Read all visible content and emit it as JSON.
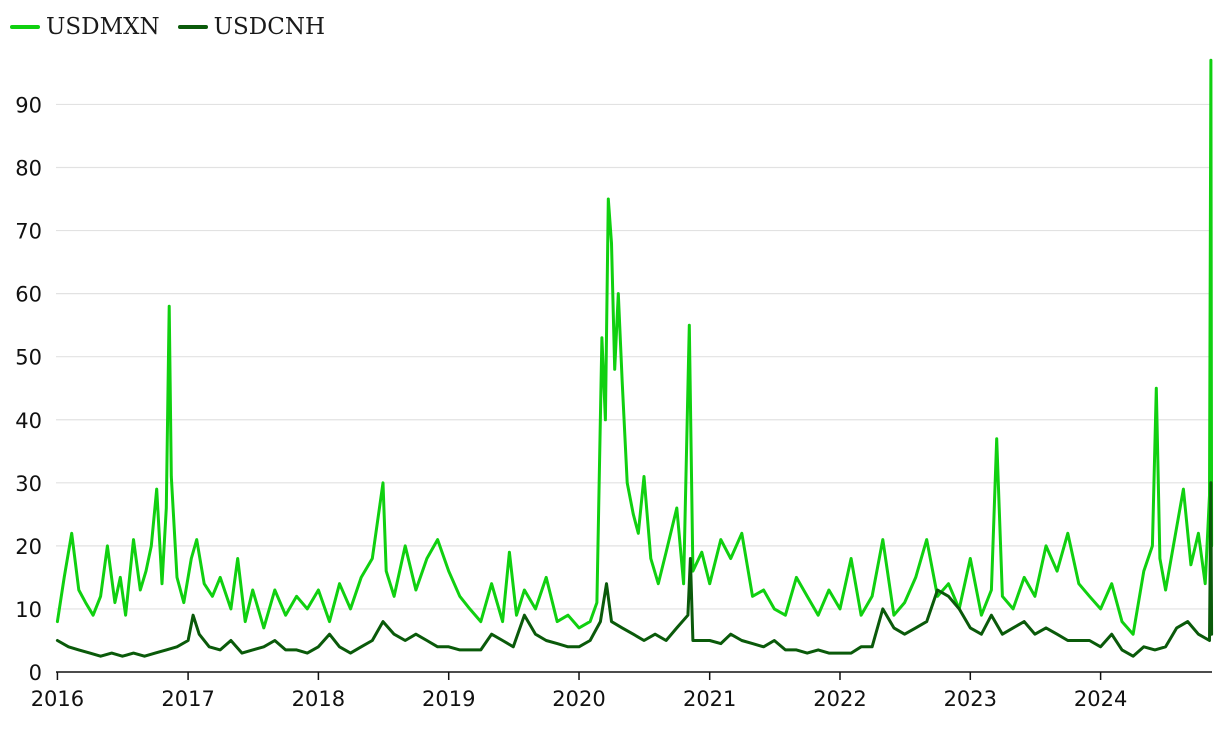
{
  "chart_data": {
    "type": "line",
    "title": "",
    "xlabel": "",
    "ylabel": "",
    "x_range": [
      "2015-12-28",
      "2024-11-08"
    ],
    "ylim": [
      0,
      98
    ],
    "y_ticks": [
      0,
      10,
      20,
      30,
      40,
      50,
      60,
      70,
      80,
      90
    ],
    "x_ticks": [
      "2016",
      "2017",
      "2018",
      "2019",
      "2020",
      "2021",
      "2022",
      "2023",
      "2024"
    ],
    "grid": "horizontal",
    "legend_position": "top-left",
    "series": [
      {
        "name": "USDMXN",
        "color": "#10d010",
        "points": [
          [
            "2016-01-01",
            8
          ],
          [
            "2016-01-20",
            15
          ],
          [
            "2016-02-10",
            22
          ],
          [
            "2016-03-01",
            13
          ],
          [
            "2016-03-20",
            11
          ],
          [
            "2016-04-10",
            9
          ],
          [
            "2016-05-01",
            12
          ],
          [
            "2016-05-20",
            20
          ],
          [
            "2016-06-10",
            11
          ],
          [
            "2016-06-25",
            15
          ],
          [
            "2016-07-10",
            9
          ],
          [
            "2016-08-01",
            21
          ],
          [
            "2016-08-20",
            13
          ],
          [
            "2016-09-05",
            16
          ],
          [
            "2016-09-20",
            20
          ],
          [
            "2016-10-05",
            29
          ],
          [
            "2016-10-20",
            14
          ],
          [
            "2016-11-01",
            26
          ],
          [
            "2016-11-09",
            58
          ],
          [
            "2016-11-15",
            31
          ],
          [
            "2016-12-01",
            15
          ],
          [
            "2016-12-20",
            11
          ],
          [
            "2017-01-10",
            18
          ],
          [
            "2017-01-25",
            21
          ],
          [
            "2017-02-15",
            14
          ],
          [
            "2017-03-10",
            12
          ],
          [
            "2017-04-01",
            15
          ],
          [
            "2017-05-01",
            10
          ],
          [
            "2017-05-20",
            18
          ],
          [
            "2017-06-10",
            8
          ],
          [
            "2017-07-01",
            13
          ],
          [
            "2017-08-01",
            7
          ],
          [
            "2017-09-01",
            13
          ],
          [
            "2017-10-01",
            9
          ],
          [
            "2017-11-01",
            12
          ],
          [
            "2017-12-01",
            10
          ],
          [
            "2018-01-01",
            13
          ],
          [
            "2018-02-01",
            8
          ],
          [
            "2018-03-01",
            14
          ],
          [
            "2018-04-01",
            10
          ],
          [
            "2018-05-01",
            15
          ],
          [
            "2018-06-01",
            18
          ],
          [
            "2018-07-01",
            30
          ],
          [
            "2018-07-10",
            16
          ],
          [
            "2018-08-01",
            12
          ],
          [
            "2018-09-01",
            20
          ],
          [
            "2018-10-01",
            13
          ],
          [
            "2018-11-01",
            18
          ],
          [
            "2018-12-01",
            21
          ],
          [
            "2019-01-01",
            16
          ],
          [
            "2019-02-01",
            12
          ],
          [
            "2019-03-01",
            10
          ],
          [
            "2019-04-01",
            8
          ],
          [
            "2019-05-01",
            14
          ],
          [
            "2019-06-01",
            8
          ],
          [
            "2019-06-20",
            19
          ],
          [
            "2019-07-10",
            9
          ],
          [
            "2019-08-01",
            13
          ],
          [
            "2019-09-01",
            10
          ],
          [
            "2019-10-01",
            15
          ],
          [
            "2019-11-01",
            8
          ],
          [
            "2019-12-01",
            9
          ],
          [
            "2020-01-01",
            7
          ],
          [
            "2020-02-01",
            8
          ],
          [
            "2020-02-20",
            11
          ],
          [
            "2020-03-05",
            53
          ],
          [
            "2020-03-15",
            40
          ],
          [
            "2020-03-23",
            75
          ],
          [
            "2020-04-01",
            68
          ],
          [
            "2020-04-10",
            48
          ],
          [
            "2020-04-20",
            60
          ],
          [
            "2020-05-01",
            46
          ],
          [
            "2020-05-15",
            30
          ],
          [
            "2020-06-01",
            25
          ],
          [
            "2020-06-15",
            22
          ],
          [
            "2020-07-01",
            31
          ],
          [
            "2020-07-20",
            18
          ],
          [
            "2020-08-10",
            14
          ],
          [
            "2020-09-01",
            19
          ],
          [
            "2020-10-01",
            26
          ],
          [
            "2020-10-20",
            14
          ],
          [
            "2020-11-05",
            55
          ],
          [
            "2020-11-15",
            16
          ],
          [
            "2020-12-10",
            19
          ],
          [
            "2021-01-01",
            14
          ],
          [
            "2021-02-01",
            21
          ],
          [
            "2021-03-01",
            18
          ],
          [
            "2021-04-01",
            22
          ],
          [
            "2021-05-01",
            12
          ],
          [
            "2021-06-01",
            13
          ],
          [
            "2021-07-01",
            10
          ],
          [
            "2021-08-01",
            9
          ],
          [
            "2021-09-01",
            15
          ],
          [
            "2021-10-01",
            12
          ],
          [
            "2021-11-01",
            9
          ],
          [
            "2021-12-01",
            13
          ],
          [
            "2022-01-01",
            10
          ],
          [
            "2022-02-01",
            18
          ],
          [
            "2022-03-01",
            9
          ],
          [
            "2022-04-01",
            12
          ],
          [
            "2022-05-01",
            21
          ],
          [
            "2022-06-01",
            9
          ],
          [
            "2022-07-01",
            11
          ],
          [
            "2022-08-01",
            15
          ],
          [
            "2022-09-01",
            21
          ],
          [
            "2022-10-01",
            12
          ],
          [
            "2022-11-01",
            14
          ],
          [
            "2022-12-01",
            10
          ],
          [
            "2023-01-01",
            18
          ],
          [
            "2023-02-01",
            9
          ],
          [
            "2023-03-01",
            13
          ],
          [
            "2023-03-16",
            37
          ],
          [
            "2023-04-01",
            12
          ],
          [
            "2023-05-01",
            10
          ],
          [
            "2023-06-01",
            15
          ],
          [
            "2023-07-01",
            12
          ],
          [
            "2023-08-01",
            20
          ],
          [
            "2023-09-01",
            16
          ],
          [
            "2023-10-01",
            22
          ],
          [
            "2023-11-01",
            14
          ],
          [
            "2023-12-01",
            12
          ],
          [
            "2024-01-01",
            10
          ],
          [
            "2024-02-01",
            14
          ],
          [
            "2024-03-01",
            8
          ],
          [
            "2024-04-01",
            6
          ],
          [
            "2024-05-01",
            16
          ],
          [
            "2024-05-25",
            20
          ],
          [
            "2024-06-05",
            45
          ],
          [
            "2024-06-15",
            18
          ],
          [
            "2024-07-01",
            13
          ],
          [
            "2024-08-01",
            23
          ],
          [
            "2024-08-20",
            29
          ],
          [
            "2024-09-10",
            17
          ],
          [
            "2024-10-01",
            22
          ],
          [
            "2024-10-20",
            14
          ],
          [
            "2024-11-01",
            28
          ],
          [
            "2024-11-05",
            97
          ],
          [
            "2024-11-07",
            20
          ]
        ]
      },
      {
        "name": "USDCNH",
        "color": "#0a5a0a",
        "points": [
          [
            "2016-01-01",
            5
          ],
          [
            "2016-02-01",
            4
          ],
          [
            "2016-03-01",
            3.5
          ],
          [
            "2016-04-01",
            3
          ],
          [
            "2016-05-01",
            2.5
          ],
          [
            "2016-06-01",
            3
          ],
          [
            "2016-07-01",
            2.5
          ],
          [
            "2016-08-01",
            3
          ],
          [
            "2016-09-01",
            2.5
          ],
          [
            "2016-10-01",
            3
          ],
          [
            "2016-11-01",
            3.5
          ],
          [
            "2016-12-01",
            4
          ],
          [
            "2017-01-01",
            5
          ],
          [
            "2017-01-15",
            9
          ],
          [
            "2017-02-01",
            6
          ],
          [
            "2017-03-01",
            4
          ],
          [
            "2017-04-01",
            3.5
          ],
          [
            "2017-05-01",
            5
          ],
          [
            "2017-06-01",
            3
          ],
          [
            "2017-07-01",
            3.5
          ],
          [
            "2017-08-01",
            4
          ],
          [
            "2017-09-01",
            5
          ],
          [
            "2017-10-01",
            3.5
          ],
          [
            "2017-11-01",
            3.5
          ],
          [
            "2017-12-01",
            3
          ],
          [
            "2018-01-01",
            4
          ],
          [
            "2018-02-01",
            6
          ],
          [
            "2018-03-01",
            4
          ],
          [
            "2018-04-01",
            3
          ],
          [
            "2018-05-01",
            4
          ],
          [
            "2018-06-01",
            5
          ],
          [
            "2018-07-01",
            8
          ],
          [
            "2018-08-01",
            6
          ],
          [
            "2018-09-01",
            5
          ],
          [
            "2018-10-01",
            6
          ],
          [
            "2018-11-01",
            5
          ],
          [
            "2018-12-01",
            4
          ],
          [
            "2019-01-01",
            4
          ],
          [
            "2019-02-01",
            3.5
          ],
          [
            "2019-03-01",
            3.5
          ],
          [
            "2019-04-01",
            3.5
          ],
          [
            "2019-05-01",
            6
          ],
          [
            "2019-06-01",
            5
          ],
          [
            "2019-07-01",
            4
          ],
          [
            "2019-08-01",
            9
          ],
          [
            "2019-09-01",
            6
          ],
          [
            "2019-10-01",
            5
          ],
          [
            "2019-11-01",
            4.5
          ],
          [
            "2019-12-01",
            4
          ],
          [
            "2020-01-01",
            4
          ],
          [
            "2020-02-01",
            5
          ],
          [
            "2020-03-01",
            8
          ],
          [
            "2020-03-18",
            14
          ],
          [
            "2020-04-01",
            8
          ],
          [
            "2020-05-01",
            7
          ],
          [
            "2020-06-01",
            6
          ],
          [
            "2020-07-01",
            5
          ],
          [
            "2020-08-01",
            6
          ],
          [
            "2020-09-01",
            5
          ],
          [
            "2020-10-01",
            7
          ],
          [
            "2020-11-01",
            9
          ],
          [
            "2020-11-08",
            18
          ],
          [
            "2020-11-15",
            5
          ],
          [
            "2020-12-01",
            5
          ],
          [
            "2021-01-01",
            5
          ],
          [
            "2021-02-01",
            4.5
          ],
          [
            "2021-03-01",
            6
          ],
          [
            "2021-04-01",
            5
          ],
          [
            "2021-05-01",
            4.5
          ],
          [
            "2021-06-01",
            4
          ],
          [
            "2021-07-01",
            5
          ],
          [
            "2021-08-01",
            3.5
          ],
          [
            "2021-09-01",
            3.5
          ],
          [
            "2021-10-01",
            3
          ],
          [
            "2021-11-01",
            3.5
          ],
          [
            "2021-12-01",
            3
          ],
          [
            "2022-01-01",
            3
          ],
          [
            "2022-02-01",
            3
          ],
          [
            "2022-03-01",
            4
          ],
          [
            "2022-04-01",
            4
          ],
          [
            "2022-05-01",
            10
          ],
          [
            "2022-06-01",
            7
          ],
          [
            "2022-07-01",
            6
          ],
          [
            "2022-08-01",
            7
          ],
          [
            "2022-09-01",
            8
          ],
          [
            "2022-10-01",
            13
          ],
          [
            "2022-11-01",
            12
          ],
          [
            "2022-12-01",
            10
          ],
          [
            "2023-01-01",
            7
          ],
          [
            "2023-02-01",
            6
          ],
          [
            "2023-03-01",
            9
          ],
          [
            "2023-04-01",
            6
          ],
          [
            "2023-05-01",
            7
          ],
          [
            "2023-06-01",
            8
          ],
          [
            "2023-07-01",
            6
          ],
          [
            "2023-08-01",
            7
          ],
          [
            "2023-09-01",
            6
          ],
          [
            "2023-10-01",
            5
          ],
          [
            "2023-11-01",
            5
          ],
          [
            "2023-12-01",
            5
          ],
          [
            "2024-01-01",
            4
          ],
          [
            "2024-02-01",
            6
          ],
          [
            "2024-03-01",
            3.5
          ],
          [
            "2024-04-01",
            2.5
          ],
          [
            "2024-05-01",
            4
          ],
          [
            "2024-06-01",
            3.5
          ],
          [
            "2024-07-01",
            4
          ],
          [
            "2024-08-01",
            7
          ],
          [
            "2024-09-01",
            8
          ],
          [
            "2024-10-01",
            6
          ],
          [
            "2024-11-01",
            5
          ],
          [
            "2024-11-05",
            30
          ],
          [
            "2024-11-07",
            6
          ]
        ]
      }
    ]
  }
}
